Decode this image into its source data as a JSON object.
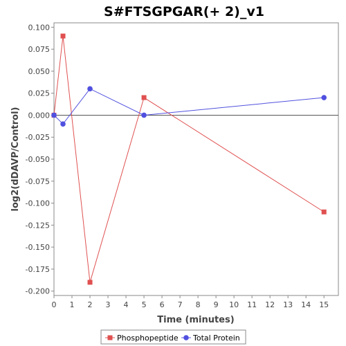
{
  "chart_data": {
    "type": "line",
    "title": "S#FTSGPGAR(+ 2)_v1",
    "xlabel": "Time (minutes)",
    "ylabel": "log2(dDAVP/Control)",
    "xlim": [
      0,
      15.8
    ],
    "ylim": [
      -0.205,
      0.105
    ],
    "x_ticks": [
      0,
      1,
      2,
      3,
      4,
      5,
      6,
      7,
      8,
      9,
      10,
      11,
      12,
      13,
      14,
      15
    ],
    "y_ticks": [
      0.1,
      0.075,
      0.05,
      0.025,
      0.0,
      -0.025,
      -0.05,
      -0.075,
      -0.1,
      -0.125,
      -0.15,
      -0.175,
      -0.2
    ],
    "y_tick_labels": [
      "0.100",
      "0.075",
      "0.050",
      "0.025",
      "0.000",
      "-0.025",
      "-0.050",
      "-0.075",
      "-0.100",
      "-0.125",
      "-0.150",
      "-0.175",
      "-0.200"
    ],
    "grid": false,
    "zero_line": true,
    "legend_position": "bottom-center",
    "series": [
      {
        "name": "Phosphopeptide",
        "color": "#e05050",
        "marker": "square",
        "x": [
          0,
          0.5,
          2,
          5,
          15
        ],
        "y": [
          0.0,
          0.09,
          -0.19,
          0.02,
          -0.11
        ]
      },
      {
        "name": "Total Protein",
        "color": "#5050e0",
        "marker": "circle",
        "x": [
          0,
          0.5,
          2,
          5,
          15
        ],
        "y": [
          0.0,
          -0.01,
          0.03,
          0.0,
          0.02
        ]
      }
    ]
  }
}
